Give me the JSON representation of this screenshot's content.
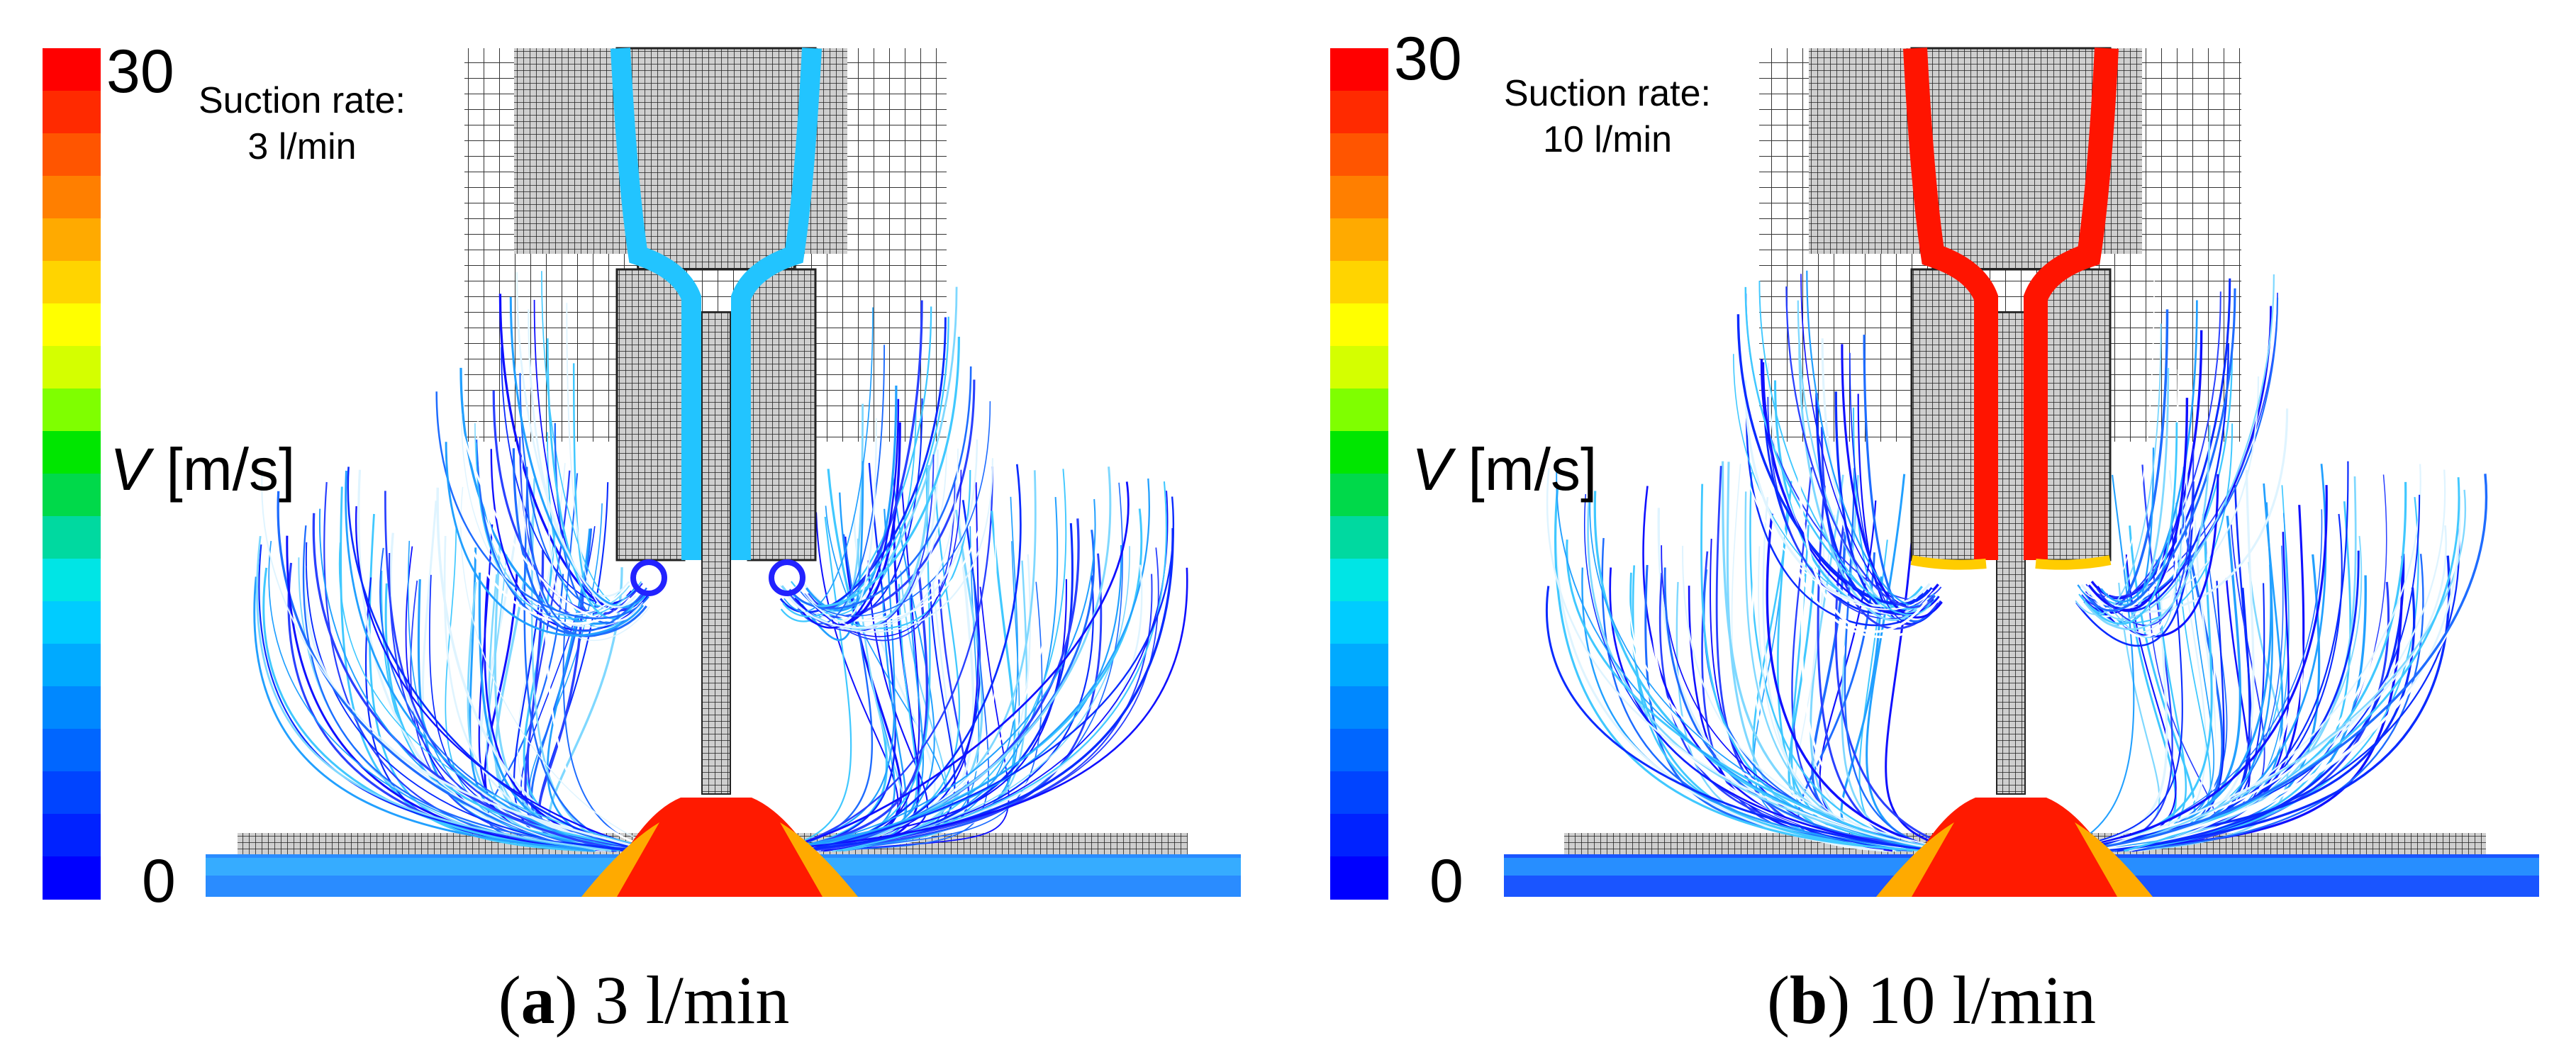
{
  "colorbar": {
    "max_label": "30",
    "min_label": "0",
    "variable": "V",
    "unit": "[m/s]",
    "colors": [
      "#ff0000",
      "#ff2a00",
      "#ff5500",
      "#ff7f00",
      "#ffaa00",
      "#ffd400",
      "#ffff00",
      "#d4ff00",
      "#7fff00",
      "#00e600",
      "#00d94a",
      "#00d9a0",
      "#00e5e5",
      "#00ccff",
      "#00aaff",
      "#0088ff",
      "#0066ff",
      "#0044ff",
      "#0022ff",
      "#0000ff"
    ]
  },
  "panels": [
    {
      "suction_line1": "Suction rate:",
      "suction_line2": "3 l/min",
      "caption_letter": "a",
      "caption_paren_open": "(",
      "caption_paren_close": ")",
      "caption_text": " 3 l/min",
      "channel_color": "#22c4ff"
    },
    {
      "suction_line1": "Suction rate:",
      "suction_line2": "10 l/min",
      "caption_letter": "b",
      "caption_paren_open": "(",
      "caption_paren_close": ")",
      "caption_text": " 10 l/min",
      "channel_color": "#ff1400"
    }
  ]
}
